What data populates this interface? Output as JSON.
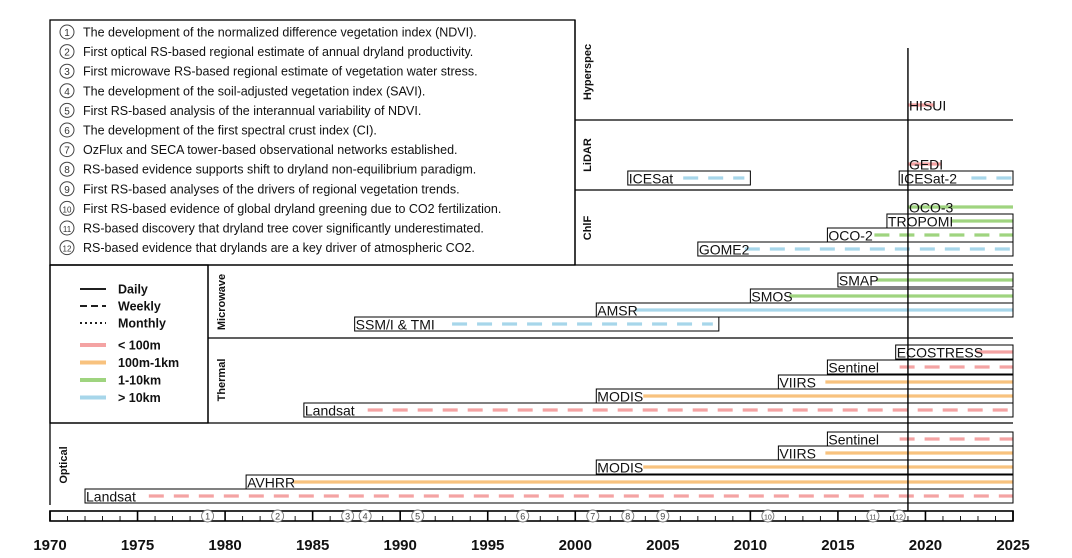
{
  "colors": {
    "lt100m": "#f4a3a3",
    "r100m1km": "#f8c27e",
    "r1to10km": "#9fd47f",
    "gt10km": "#a7d6ea"
  },
  "milestones": [
    {
      "num": "1",
      "text": "The development of the normalized difference vegetation index (NDVI).",
      "year": 1979
    },
    {
      "num": "2",
      "text": "First optical RS-based regional estimate of annual dryland productivity.",
      "year": 1983
    },
    {
      "num": "3",
      "text": "First microwave RS-based regional estimate of vegetation water stress.",
      "year": 1987
    },
    {
      "num": "4",
      "text": "The development of the soil-adjusted vegetation index (SAVI).",
      "year": 1988
    },
    {
      "num": "5",
      "text": "First RS-based analysis of the interannual variability of NDVI.",
      "year": 1991
    },
    {
      "num": "6",
      "text": "The development of the first spectral crust index (CI).",
      "year": 1997
    },
    {
      "num": "7",
      "text": "OzFlux and SECA tower-based observational networks established.",
      "year": 2001
    },
    {
      "num": "8",
      "text": "RS-based evidence supports shift to dryland non-equilibrium paradigm.",
      "year": 2003
    },
    {
      "num": "9",
      "text": "First RS-based analyses of the drivers of regional vegetation trends.",
      "year": 2005
    },
    {
      "num": "10",
      "text": "First RS-based evidence of global dryland greening due to CO2 fertilization.",
      "year": 2011
    },
    {
      "num": "11",
      "text": "RS-based discovery that dryland tree cover significantly underestimated.",
      "year": 2017
    },
    {
      "num": "12",
      "text": "RS-based evidence that drylands are a key driver of atmospheric CO2.",
      "year": 2018.5
    }
  ],
  "legend": {
    "line_styles": [
      {
        "label": "Daily",
        "dash": "solid"
      },
      {
        "label": "Weekly",
        "dash": "dashed"
      },
      {
        "label": "Monthly",
        "dash": "dotted"
      }
    ],
    "resolutions": [
      {
        "label": "< 100m",
        "color": "#f4a3a3"
      },
      {
        "label": "100m-1km",
        "color": "#f8c27e"
      },
      {
        "label": "1-10km",
        "color": "#9fd47f"
      },
      {
        "label": "> 10km",
        "color": "#a7d6ea"
      }
    ]
  },
  "axis": {
    "ticks": [
      "1970",
      "1975",
      "1980",
      "1985",
      "1990",
      "1995",
      "2000",
      "2005",
      "2010",
      "2015",
      "2020",
      "2025"
    ],
    "range": [
      1970,
      2025
    ],
    "current_year": 2019
  },
  "categories": [
    {
      "name": "Hyperspec",
      "sensors": [
        {
          "label": "HISUI",
          "start": 2019,
          "bar_end": 2020.5,
          "color": "#f4a3a3",
          "style": "solid",
          "box": false
        }
      ]
    },
    {
      "name": "LiDAR",
      "sensors": [
        {
          "label": "GEDI",
          "start": 2019,
          "bar_end": 2020.9,
          "color": "#f4a3a3",
          "style": "solid",
          "box": false
        },
        {
          "label": "ICESat",
          "start": 2003,
          "end": 2010,
          "color": "#a7d6ea",
          "style": "dashed",
          "box": true
        },
        {
          "label": "ICESat-2",
          "start": 2018.5,
          "color": "#a7d6ea",
          "style": "dashed",
          "box": true
        }
      ]
    },
    {
      "name": "ChlF",
      "sensors": [
        {
          "label": "OCO-3",
          "start": 2019,
          "color": "#9fd47f",
          "style": "solid",
          "box": false
        },
        {
          "label": "TROPOMI",
          "start": 2017.8,
          "color": "#9fd47f",
          "style": "solid",
          "box": true
        },
        {
          "label": "OCO-2",
          "start": 2014.4,
          "color": "#9fd47f",
          "style": "dashed",
          "box": true
        },
        {
          "label": "GOME2",
          "start": 2007,
          "color": "#a7d6ea",
          "style": "dashed",
          "box": true
        }
      ]
    },
    {
      "name": "Microwave",
      "sensors": [
        {
          "label": "SMAP",
          "start": 2015,
          "color": "#9fd47f",
          "style": "solid",
          "box": true
        },
        {
          "label": "SMOS",
          "start": 2010,
          "color": "#9fd47f",
          "style": "solid",
          "box": true
        },
        {
          "label": "AMSR",
          "start": 2001.2,
          "color": "#a7d6ea",
          "style": "solid",
          "box": true
        },
        {
          "label": "SSM/I & TMI",
          "start": 1987.4,
          "end": 2008.2,
          "color": "#a7d6ea",
          "style": "dashed",
          "box": true
        }
      ]
    },
    {
      "name": "Thermal",
      "sensors": [
        {
          "label": "ECOSTRESS",
          "start": 2018.3,
          "color": "#f4a3a3",
          "style": "solid",
          "box": true
        },
        {
          "label": "Sentinel",
          "start": 2014.4,
          "color": "#f4a3a3",
          "style": "dashed",
          "box": true
        },
        {
          "label": "VIIRS",
          "start": 2011.6,
          "color": "#f8c27e",
          "style": "solid",
          "box": true
        },
        {
          "label": "MODIS",
          "start": 2001.2,
          "color": "#f8c27e",
          "style": "solid",
          "box": true
        },
        {
          "label": "Landsat",
          "start": 1984.5,
          "color": "#f4a3a3",
          "style": "dashed",
          "box": true
        }
      ]
    },
    {
      "name": "Optical",
      "sensors": [
        {
          "label": "Sentinel",
          "start": 2014.4,
          "color": "#f4a3a3",
          "style": "dashed",
          "box": true
        },
        {
          "label": "VIIRS",
          "start": 2011.6,
          "color": "#f8c27e",
          "style": "solid",
          "box": true
        },
        {
          "label": "MODIS",
          "start": 2001.2,
          "color": "#f8c27e",
          "style": "solid",
          "box": true
        },
        {
          "label": "AVHRR",
          "start": 1981.2,
          "color": "#f8c27e",
          "style": "solid",
          "box": true
        },
        {
          "label": "Landsat",
          "start": 1972,
          "color": "#f4a3a3",
          "style": "dashed",
          "box": true
        }
      ]
    }
  ]
}
